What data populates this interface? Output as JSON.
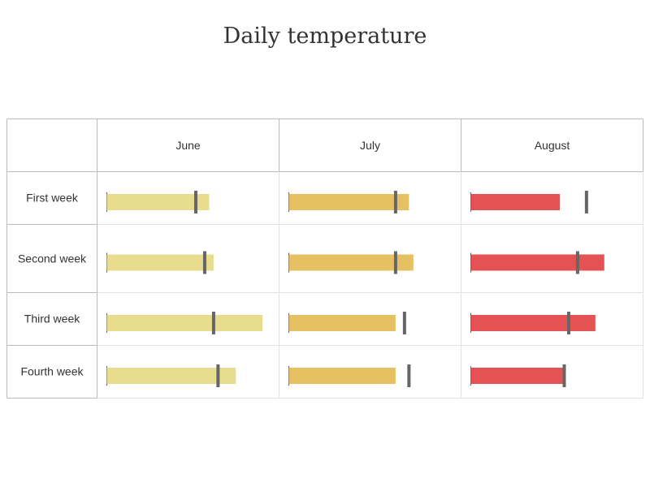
{
  "title": "Daily temperature",
  "chart_data": {
    "type": "bullet-grid",
    "columns": [
      "June",
      "July",
      "August"
    ],
    "rows": [
      "First week",
      "Second week",
      "Third week",
      "Fourth week"
    ],
    "bar_colors": {
      "June": "#e8dd8f",
      "July": "#e6c163",
      "August": "#e55253"
    },
    "marker_color": "#666666",
    "scale": [
      0,
      40
    ],
    "cells": [
      [
        {
          "value": 23,
          "target": 20
        },
        {
          "value": 27,
          "target": 24
        },
        {
          "value": 20,
          "target": 26
        }
      ],
      [
        {
          "value": 24,
          "target": 22
        },
        {
          "value": 28,
          "target": 24
        },
        {
          "value": 30,
          "target": 24
        }
      ],
      [
        {
          "value": 35,
          "target": 24
        },
        {
          "value": 24,
          "target": 26
        },
        {
          "value": 28,
          "target": 22
        }
      ],
      [
        {
          "value": 29,
          "target": 25
        },
        {
          "value": 24,
          "target": 27
        },
        {
          "value": 21,
          "target": 21
        }
      ]
    ]
  }
}
